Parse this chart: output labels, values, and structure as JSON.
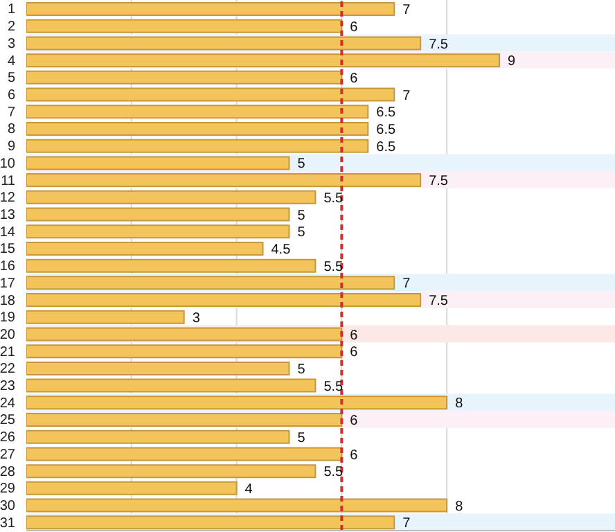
{
  "chart_data": {
    "type": "bar",
    "orientation": "horizontal",
    "categories": [
      "1",
      "2",
      "3",
      "4",
      "5",
      "6",
      "7",
      "8",
      "9",
      "10",
      "11",
      "12",
      "13",
      "14",
      "15",
      "16",
      "17",
      "18",
      "19",
      "20",
      "21",
      "22",
      "23",
      "24",
      "25",
      "26",
      "27",
      "28",
      "29",
      "30",
      "31"
    ],
    "values": [
      7,
      6,
      7.5,
      9,
      6,
      7,
      6.5,
      6.5,
      6.5,
      5,
      7.5,
      5.5,
      5,
      5,
      4.5,
      5.5,
      7,
      7.5,
      3,
      6,
      6,
      5,
      5.5,
      8,
      6,
      5,
      6,
      5.5,
      4,
      8,
      7
    ],
    "color": "#f2c45a",
    "data_labels": true,
    "xlim": [
      0,
      11.2
    ],
    "xticks": [
      {
        "value": 2,
        "label": null
      },
      {
        "value": 4,
        "label": null
      },
      {
        "value": 6,
        "label": null
      },
      {
        "value": 8,
        "label": null
      }
    ],
    "tick_labels": "y",
    "grid": "x",
    "ref_lines": [
      {
        "axis": "x",
        "value": 6,
        "color": "#d03030",
        "line_style": "dashed"
      }
    ],
    "bands": [
      {
        "axis": "y",
        "from": "3",
        "to": "3",
        "color": "#e8f4fc"
      },
      {
        "axis": "y",
        "from": "10",
        "to": "10",
        "color": "#e8f4fc"
      },
      {
        "axis": "y",
        "from": "17",
        "to": "17",
        "color": "#e8f4fc"
      },
      {
        "axis": "y",
        "from": "24",
        "to": "24",
        "color": "#e8f4fc"
      },
      {
        "axis": "y",
        "from": "31",
        "to": "31",
        "color": "#e8f4fc"
      },
      {
        "axis": "y",
        "from": "4",
        "to": "4",
        "color": "#fcf0f8"
      },
      {
        "axis": "y",
        "from": "11",
        "to": "11",
        "color": "#fcf0f8"
      },
      {
        "axis": "y",
        "from": "18",
        "to": "18",
        "color": "#fcf0f8"
      },
      {
        "axis": "y",
        "from": "25",
        "to": "25",
        "color": "#fcf0f8"
      },
      {
        "axis": "y",
        "from": "20",
        "to": "20",
        "color": "#fde8e8"
      }
    ]
  }
}
